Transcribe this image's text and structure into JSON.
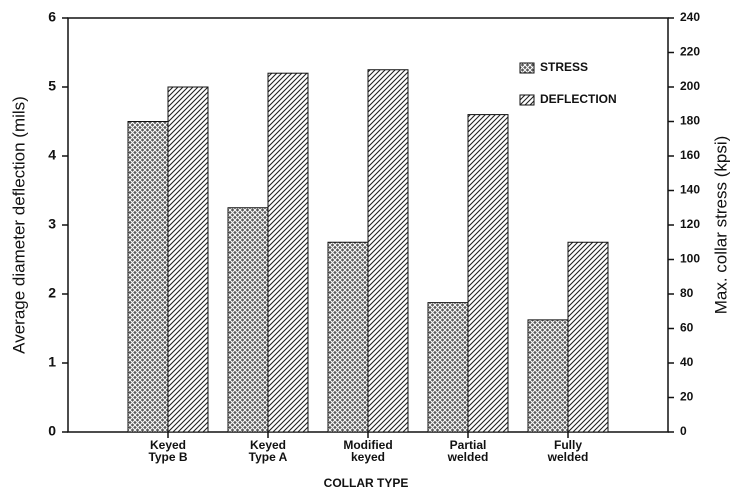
{
  "chart_data": {
    "type": "bar",
    "x_label": "COLLAR TYPE",
    "y_label": "Average diameter deflection (mils)",
    "y2_label": "Max. collar stress (kpsi)",
    "categories": [
      [
        "Keyed",
        "Type B"
      ],
      [
        "Keyed",
        "Type A"
      ],
      [
        "Modified",
        "keyed"
      ],
      [
        "Partial",
        "welded"
      ],
      [
        "Fully",
        "welded"
      ]
    ],
    "series": [
      {
        "name": "STRESS",
        "color": "#222222",
        "pattern": "crosshatch",
        "axis": "y2",
        "values": [
          180,
          130,
          110,
          75,
          65
        ]
      },
      {
        "name": "DEFLECTION",
        "color": "#222222",
        "pattern": "diagonal",
        "axis": "y",
        "values": [
          5.0,
          5.2,
          5.25,
          4.6,
          2.75
        ]
      }
    ],
    "ylim": [
      0,
      6
    ],
    "yticks": [
      0,
      1,
      2,
      3,
      4,
      5,
      6
    ],
    "y2lim": [
      0,
      240
    ],
    "y2ticks": [
      0,
      20,
      40,
      60,
      80,
      100,
      120,
      140,
      160,
      180,
      200,
      220,
      240
    ],
    "grid": false,
    "legend": "upper right"
  }
}
